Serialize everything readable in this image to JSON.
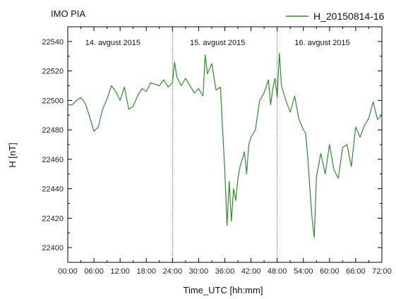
{
  "station_label": "IMO PIA",
  "chart_data": {
    "type": "line",
    "xlabel": "Time_UTC [hh:mm]",
    "ylabel": "H [nT]",
    "xlim": [
      0,
      72
    ],
    "ylim": [
      22390,
      22550
    ],
    "x_ticks": [
      0,
      6,
      12,
      18,
      24,
      30,
      36,
      42,
      48,
      54,
      60,
      66,
      72
    ],
    "x_tick_labels": [
      "00:00",
      "06:00",
      "12:00",
      "18:00",
      "24:00",
      "30:00",
      "36:00",
      "42:00",
      "48:00",
      "54:00",
      "60:00",
      "66:00",
      "72:00"
    ],
    "y_ticks": [
      22400,
      22420,
      22440,
      22460,
      22480,
      22500,
      22520,
      22540
    ],
    "y_tick_labels": [
      "22400",
      "22420",
      "22440",
      "22460",
      "22480",
      "22500",
      "22520",
      "22540"
    ],
    "grid": false,
    "legend_position": "top-right",
    "day_separators": [
      24,
      48
    ],
    "day_labels": [
      {
        "x": 4,
        "text": "14. avgust 2015"
      },
      {
        "x": 28,
        "text": "15. avgust 2015"
      },
      {
        "x": 52,
        "text": "16. avgust 2015"
      }
    ],
    "series": [
      {
        "name": "H_20150814-16",
        "color": "#2e8b2e",
        "x": [
          0,
          1,
          2,
          3,
          4,
          5,
          6,
          7,
          8,
          9,
          10,
          11,
          12,
          13,
          14,
          15,
          16,
          17,
          18,
          19,
          20,
          21,
          22,
          23,
          24,
          24.5,
          25,
          26,
          27,
          28,
          29,
          30,
          31,
          31.5,
          32,
          33,
          34,
          35,
          35.5,
          36,
          36.5,
          37,
          37.5,
          38,
          38.5,
          39,
          39.5,
          40,
          40.5,
          41,
          41.5,
          42,
          43,
          44,
          45,
          46,
          46.5,
          47,
          47.5,
          48,
          48.5,
          49,
          50,
          51,
          52,
          53,
          54,
          54.5,
          55,
          55.5,
          56,
          56.5,
          57,
          58,
          59,
          60,
          61,
          62,
          63,
          64,
          65,
          66,
          67,
          68,
          69,
          70,
          71,
          72
        ],
        "values": [
          22497,
          22497,
          22500,
          22502,
          22498,
          22489,
          22479,
          22482,
          22494,
          22501,
          22510,
          22506,
          22500,
          22509,
          22494,
          22496,
          22503,
          22508,
          22506,
          22512,
          22511,
          22510,
          22514,
          22509,
          22512,
          22526,
          22516,
          22510,
          22515,
          22510,
          22505,
          22508,
          22503,
          22531,
          22518,
          22525,
          22507,
          22509,
          22480,
          22452,
          22415,
          22445,
          22418,
          22440,
          22432,
          22447,
          22455,
          22460,
          22465,
          22450,
          22470,
          22475,
          22480,
          22500,
          22505,
          22514,
          22497,
          22508,
          22515,
          22502,
          22532,
          22510,
          22500,
          22492,
          22503,
          22487,
          22480,
          22478,
          22462,
          22440,
          22420,
          22407,
          22448,
          22464,
          22450,
          22470,
          22453,
          22447,
          22468,
          22470,
          22455,
          22482,
          22475,
          22483,
          22488,
          22499,
          22487,
          22490
        ]
      }
    ]
  }
}
